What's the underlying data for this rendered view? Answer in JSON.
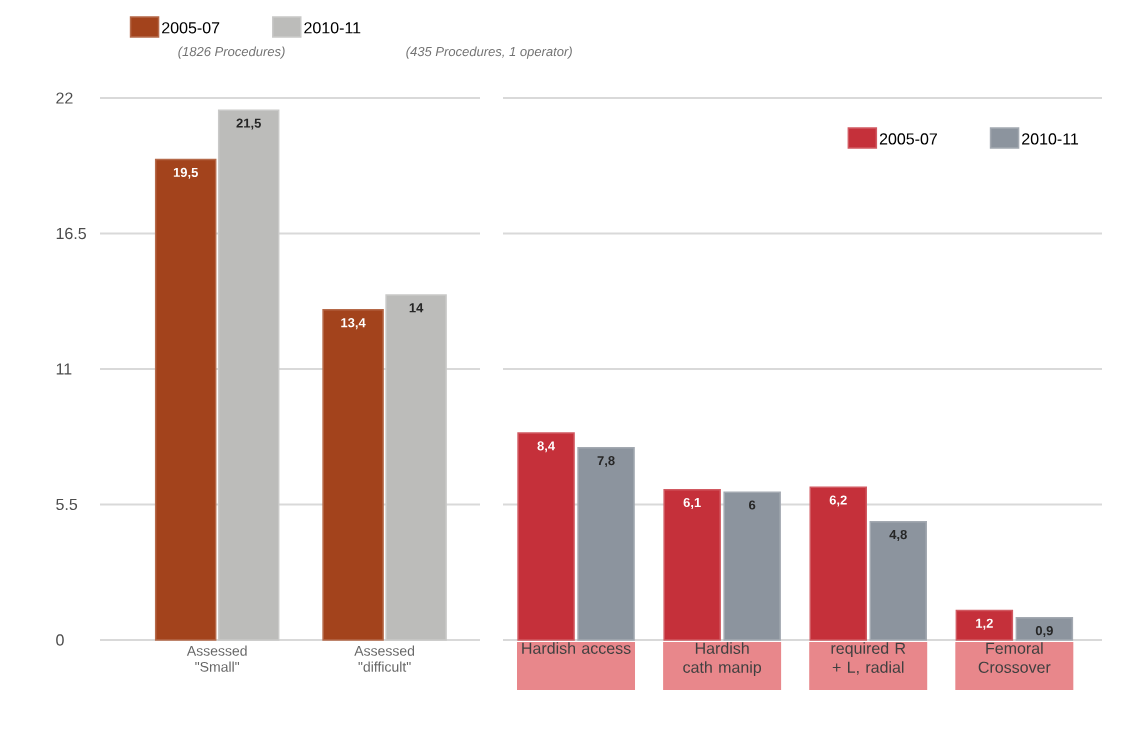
{
  "chart_data": [
    {
      "type": "bar",
      "categories": [
        "Assessed \"Small\"",
        "Assessed \"difficult\""
      ],
      "series": [
        {
          "name": "2005-07",
          "color": "#a3431c",
          "values": [
            19.5,
            13.4
          ],
          "value_labels": [
            "19,5",
            "13,4"
          ]
        },
        {
          "name": "2010-11",
          "color": "#bcbcba",
          "values": [
            21.5,
            14
          ],
          "value_labels": [
            "21,5",
            "14"
          ]
        }
      ],
      "ylim": [
        0,
        22
      ],
      "yticks": [
        0,
        5.5,
        11,
        16.5,
        22
      ],
      "grid": "y",
      "legend": "top left",
      "annotations": [
        "(1826 Procedures)",
        "(435 Procedures, 1 operator)"
      ]
    },
    {
      "type": "bar",
      "categories": [
        "Hardish access",
        "Hardish cath manip",
        "required R + L, radial",
        "Femoral Crossover"
      ],
      "series": [
        {
          "name": "2005-07",
          "color": "#c5303a",
          "values": [
            8.4,
            6.1,
            6.2,
            1.2
          ],
          "value_labels": [
            "8,4",
            "6,1",
            "6,2",
            "1,2"
          ]
        },
        {
          "name": "2010-11",
          "color": "#8c949e",
          "values": [
            7.8,
            6,
            4.8,
            0.9
          ],
          "value_labels": [
            "7,8",
            "6",
            "4,8",
            "0,9"
          ]
        }
      ],
      "ylim": [
        0,
        22
      ],
      "yticks": [
        0,
        5.5,
        11,
        16.5,
        22
      ],
      "grid": "y",
      "legend": "top right",
      "tick_labels": "x"
    }
  ]
}
